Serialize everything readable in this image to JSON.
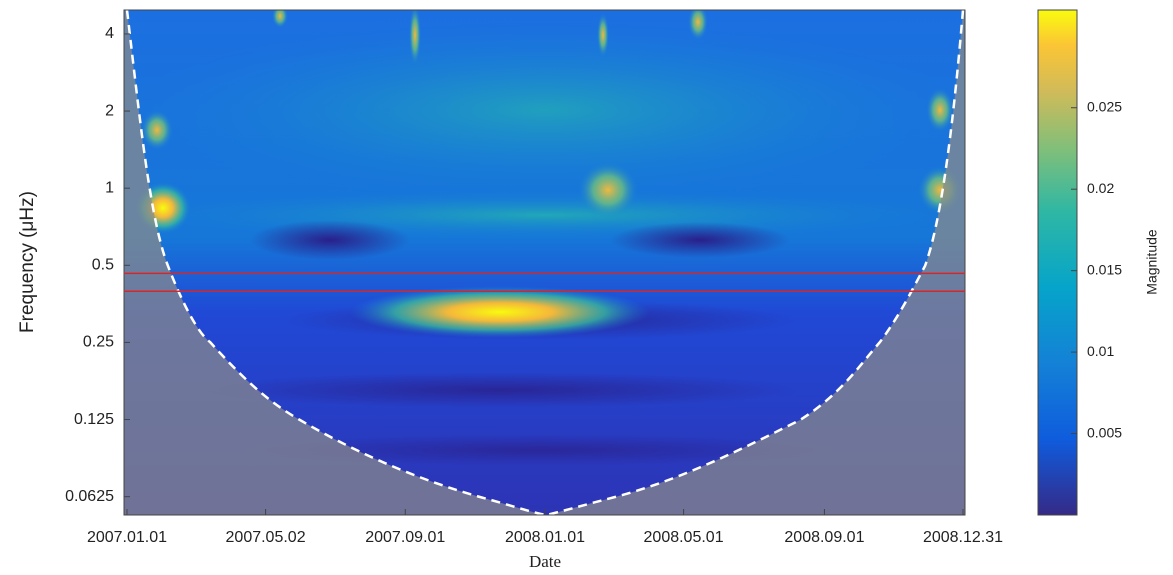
{
  "chart_data": {
    "type": "heatmap",
    "y_label": "Frequency (μHz)",
    "x_label": "Date",
    "colorbar_label": "Magnitude",
    "xlim": [
      "2007.01.01",
      "2008.12.31"
    ],
    "xticks": [
      "2007.01.01",
      "2007.05.02",
      "2007.09.01",
      "2008.01.01",
      "2008.05.01",
      "2008.09.01",
      "2008.12.31"
    ],
    "y_scale": "log",
    "ylim": [
      0.053,
      4.96
    ],
    "yticks": [
      0.0625,
      0.125,
      0.25,
      0.5,
      1,
      2,
      4
    ],
    "clim": [
      0,
      0.031
    ],
    "cticks": [
      0.005,
      0.01,
      0.015,
      0.02,
      0.025
    ],
    "reference_lines": [
      0.465,
      0.396
    ],
    "reference_color": "#d62728"
  }
}
